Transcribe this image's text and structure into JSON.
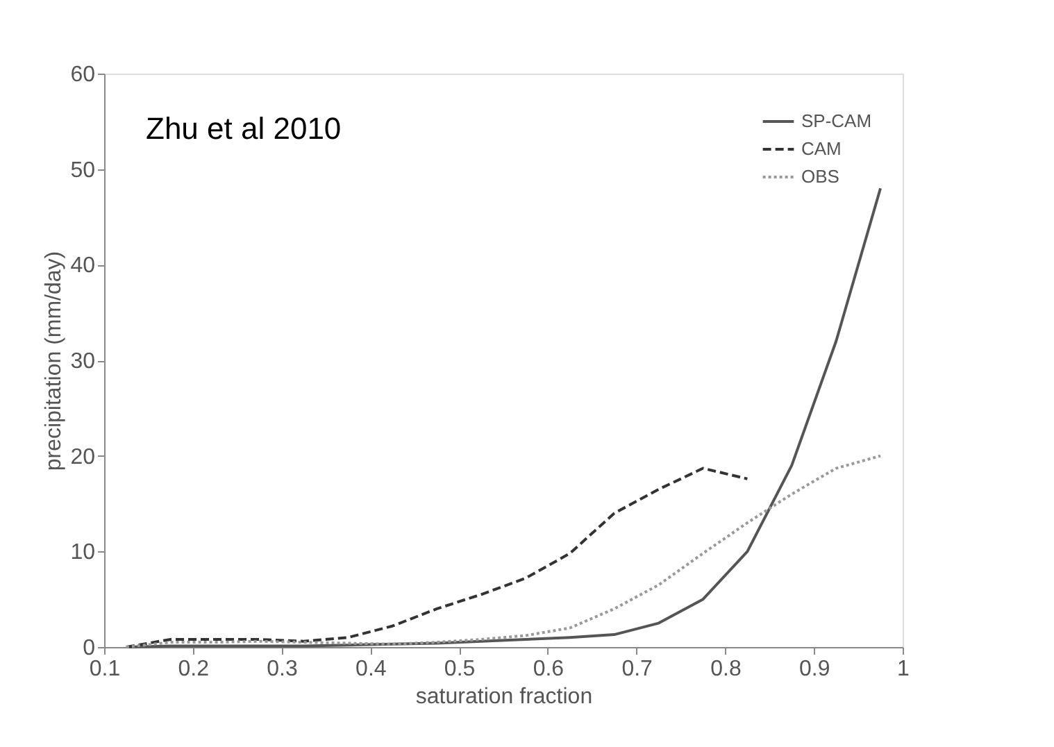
{
  "chart_data": {
    "type": "line",
    "xlabel": "saturation fraction",
    "ylabel": "precipitation (mm/day)",
    "xlim": [
      0.1,
      1.0
    ],
    "xticks": [
      0.1,
      0.2,
      0.3,
      0.4,
      0.5,
      0.6,
      0.7,
      0.8,
      0.9,
      1
    ],
    "ylim": [
      0,
      60
    ],
    "yticks": [
      0,
      10,
      20,
      30,
      40,
      50,
      60
    ],
    "grid": false,
    "legend": "top right",
    "marker": "none",
    "annotations": [
      "Zhu et al 2010"
    ],
    "x": [
      0.125,
      0.175,
      0.225,
      0.275,
      0.325,
      0.375,
      0.425,
      0.475,
      0.525,
      0.575,
      0.625,
      0.675,
      0.725,
      0.775,
      0.825,
      0.875,
      0.925,
      0.975
    ],
    "series": [
      {
        "name": "SP-CAM",
        "color": "#555555",
        "line_style": "solid",
        "values": [
          0,
          0.1,
          0.1,
          0.1,
          0.1,
          0.2,
          0.3,
          0.4,
          0.6,
          0.8,
          1,
          1.3,
          2.5,
          5,
          10,
          19,
          32,
          48
        ]
      },
      {
        "name": "CAM",
        "color": "#333333",
        "line_style": "dashed",
        "values": [
          0,
          0.8,
          0.8,
          0.8,
          0.6,
          1,
          2.2,
          4,
          5.5,
          7.2,
          9.8,
          14,
          16.5,
          18.7,
          17.6,
          null,
          null,
          null
        ]
      },
      {
        "name": "OBS",
        "color": "#999999",
        "line_style": "dotted",
        "values": [
          0,
          0.5,
          0.5,
          0.6,
          0.5,
          0.4,
          0.3,
          0.5,
          0.8,
          1.2,
          2,
          4,
          6.5,
          9.8,
          13,
          16,
          18.7,
          20
        ]
      }
    ]
  }
}
